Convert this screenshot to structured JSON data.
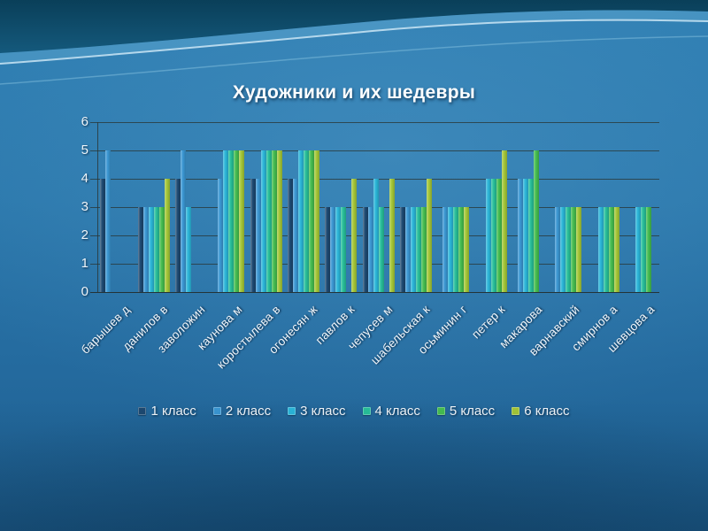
{
  "chart_data": {
    "type": "bar",
    "title": "Художники и их шедевры",
    "categories": [
      "барышев д",
      "данилов в",
      "заволожин",
      "каунова м",
      "коростылева в",
      "огонесян ж",
      "павлов к",
      "чепусев м",
      "шабельская к",
      "осьминин г",
      "петер к",
      "макарова",
      "варнавский",
      "смирнов а",
      "шевцова а"
    ],
    "series": [
      {
        "name": "1 класс",
        "color": "#1c4870",
        "values": [
          4,
          3,
          4,
          0,
          4,
          4,
          3,
          3,
          3,
          0,
          0,
          0,
          0,
          0,
          0
        ]
      },
      {
        "name": "2 класс",
        "color": "#3a96d2",
        "values": [
          5,
          3,
          5,
          4,
          4,
          4,
          3,
          3,
          3,
          3,
          0,
          4,
          3,
          0,
          0
        ]
      },
      {
        "name": "3 класс",
        "color": "#2ab5d8",
        "values": [
          0,
          3,
          3,
          5,
          5,
          5,
          3,
          4,
          3,
          3,
          4,
          4,
          3,
          3,
          3
        ]
      },
      {
        "name": "4 класс",
        "color": "#27bf99",
        "values": [
          0,
          3,
          0,
          5,
          5,
          5,
          3,
          3,
          3,
          3,
          4,
          4,
          3,
          3,
          3
        ]
      },
      {
        "name": "5 класс",
        "color": "#45bd4f",
        "values": [
          0,
          3,
          0,
          5,
          5,
          5,
          0,
          0,
          3,
          3,
          4,
          5,
          3,
          3,
          3
        ]
      },
      {
        "name": "6 класс",
        "color": "#a4c637",
        "values": [
          0,
          4,
          0,
          5,
          5,
          5,
          4,
          4,
          4,
          3,
          5,
          0,
          3,
          3,
          0
        ]
      }
    ],
    "ylim": [
      0,
      6
    ],
    "yticks": [
      0,
      1,
      2,
      3,
      4,
      5,
      6
    ],
    "grid": true,
    "legend_position": "bottom"
  }
}
